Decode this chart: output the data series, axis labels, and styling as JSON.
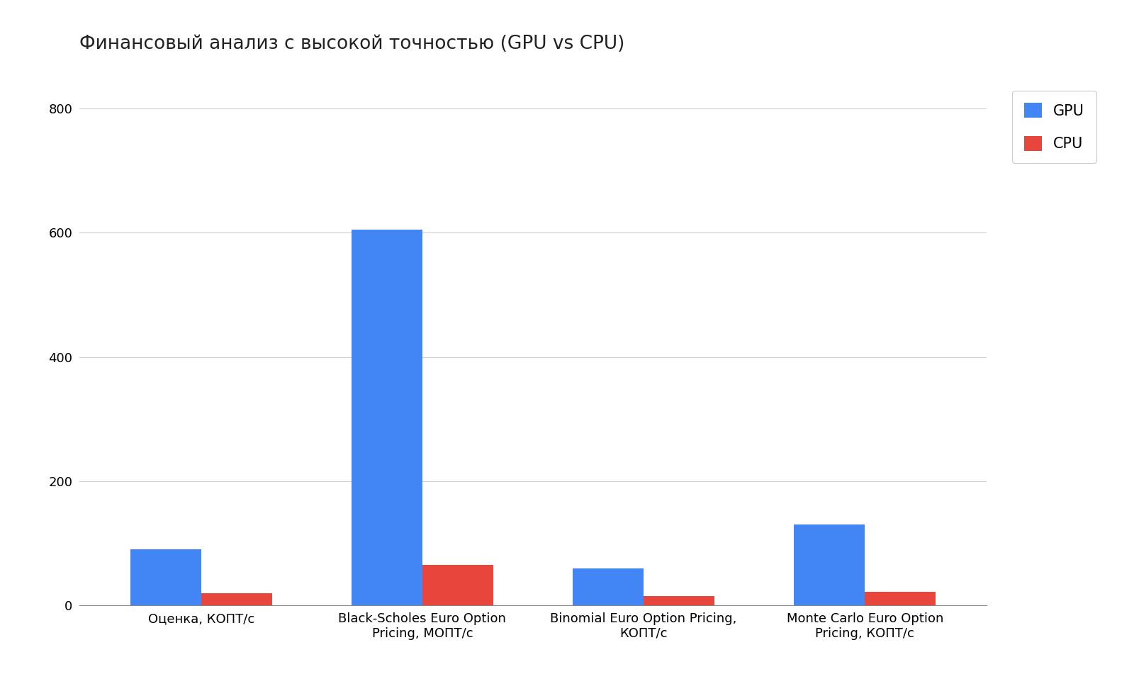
{
  "title": "Финансовый анализ с высокой точностью (GPU vs CPU)",
  "categories": [
    "Оценка, КОПТ/с",
    "Black-Scholes Euro Option\nPricing, МОПТ/с",
    "Binomial Euro Option Pricing,\nКОПТ/с",
    "Monte Carlo Euro Option\nPricing, КОПТ/с"
  ],
  "gpu_values": [
    90,
    605,
    60,
    130
  ],
  "cpu_values": [
    20,
    65,
    15,
    22
  ],
  "gpu_color": "#4285F4",
  "cpu_color": "#E8453C",
  "ylim": [
    0,
    840
  ],
  "yticks": [
    0,
    200,
    400,
    600,
    800
  ],
  "legend_labels": [
    "GPU",
    "CPU"
  ],
  "background_color": "#ffffff",
  "grid_color": "#d0d0d0",
  "bar_width": 0.32,
  "title_fontsize": 19,
  "tick_fontsize": 13,
  "legend_fontsize": 15
}
